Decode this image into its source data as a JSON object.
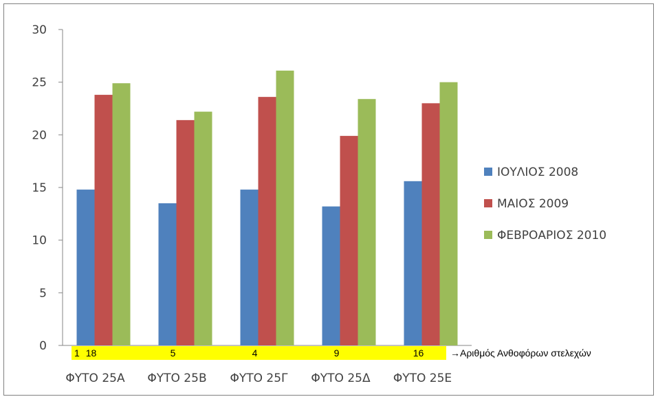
{
  "chart_data": {
    "type": "bar",
    "title": "",
    "xlabel": "",
    "ylabel": "",
    "ylim": [
      0,
      30
    ],
    "yticks": [
      0,
      5,
      10,
      15,
      20,
      25,
      30
    ],
    "grid": false,
    "legend_position": "right",
    "categories": [
      "ΦΥΤΟ 25Α",
      "ΦΥΤΟ 25Β",
      "ΦΥΤΟ 25Γ",
      "ΦΥΤΟ 25Δ",
      "ΦΥΤΟ 25Ε"
    ],
    "series": [
      {
        "name": "ΙΟΥΛΙΟΣ 2008",
        "color": "#4f81bd",
        "values": [
          14.8,
          13.5,
          14.8,
          13.2,
          15.6
        ]
      },
      {
        "name": "ΜΑΙΟΣ 2009",
        "color": "#c0504d",
        "values": [
          23.8,
          21.4,
          23.6,
          19.9,
          23.0
        ]
      },
      {
        "name": "ΦΕΒΡΟΑΡΙΟΣ 2010",
        "color": "#9bbb59",
        "values": [
          24.9,
          22.2,
          26.1,
          23.4,
          25.0
        ]
      }
    ],
    "annotation": {
      "row_marker": "1",
      "counts": [
        "18",
        "5",
        "4",
        "9",
        "16"
      ],
      "highlight_color": "#ffff00",
      "arrow": "→",
      "text": "Αριθμός Ανθοφόρων στελεχών"
    }
  }
}
